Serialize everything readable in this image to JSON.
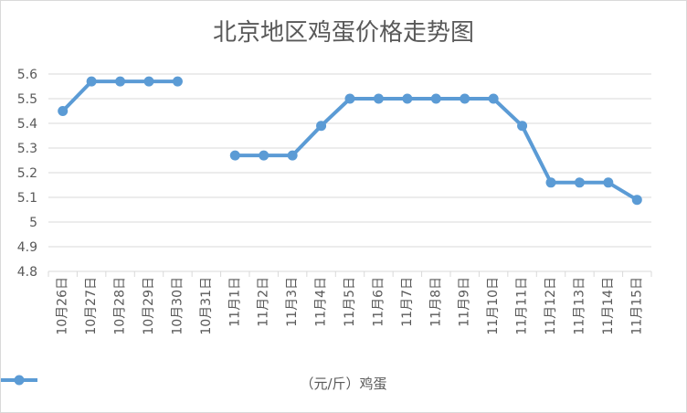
{
  "chart_data": {
    "type": "line",
    "title": "北京地区鸡蛋价格走势图",
    "xlabel": "",
    "ylabel": "",
    "ylim": [
      4.8,
      5.6
    ],
    "yticks": [
      "5.6",
      "5.5",
      "5.4",
      "5.3",
      "5.2",
      "5.1",
      "5",
      "4.9",
      "4.8"
    ],
    "categories": [
      "10月26日",
      "10月27日",
      "10月28日",
      "10月29日",
      "10月30日",
      "10月31日",
      "11月1日",
      "11月2日",
      "11月3日",
      "11月4日",
      "11月5日",
      "11月6日",
      "11月7日",
      "11月8日",
      "11月9日",
      "11月10日",
      "11月11日",
      "11月12日",
      "11月13日",
      "11月14日",
      "11月15日"
    ],
    "series": [
      {
        "name": "（元/斤）鸡蛋",
        "color": "#5b9bd5",
        "values": [
          5.45,
          5.57,
          5.57,
          5.57,
          5.57,
          null,
          5.27,
          5.27,
          5.27,
          5.39,
          5.5,
          5.5,
          5.5,
          5.5,
          5.5,
          5.5,
          5.39,
          5.16,
          5.16,
          5.16,
          5.09
        ]
      }
    ],
    "grid": true,
    "legend_position": "bottom"
  }
}
